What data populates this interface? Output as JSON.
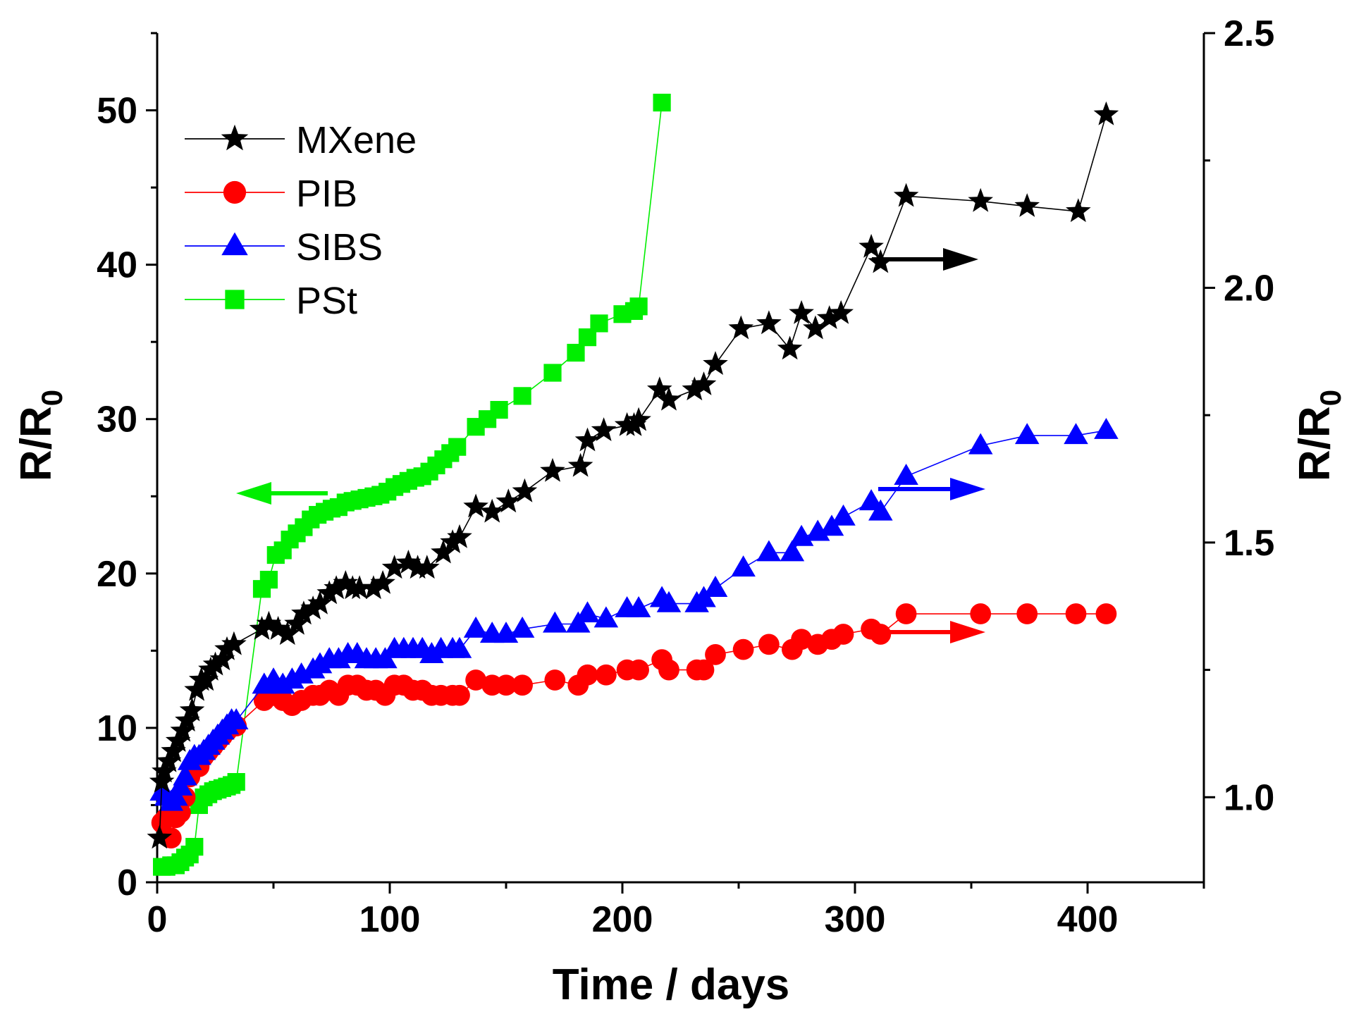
{
  "chart_data": {
    "type": "line",
    "title": "",
    "xlabel": "Time / days",
    "ylabel_left": {
      "main": "R/R",
      "sub": "0"
    },
    "ylabel_right": {
      "main": "R/R",
      "sub": "0"
    },
    "xlim": [
      0,
      450
    ],
    "ylim_left": [
      0,
      55
    ],
    "ylim_right": [
      0.833,
      2.5
    ],
    "x_ticks": [
      0,
      100,
      200,
      300,
      400
    ],
    "y_left_ticks": [
      0,
      10,
      20,
      30,
      40,
      50
    ],
    "y_right_ticks": [
      "1.0",
      "1.5",
      "2.0",
      "2.5"
    ],
    "grid": false,
    "legend_position": "top-left",
    "series": [
      {
        "name": "MXene",
        "color": "#000000",
        "marker": "star",
        "axis": "right",
        "x": [
          1,
          2,
          3,
          5,
          7,
          9,
          11,
          13,
          15,
          17,
          19,
          21,
          23,
          25,
          28,
          30,
          33,
          45,
          48,
          52,
          56,
          60,
          63,
          67,
          70,
          74,
          77,
          81,
          84,
          87,
          93,
          97,
          102,
          108,
          112,
          116,
          123,
          127,
          130,
          137,
          144,
          151,
          158,
          170,
          182,
          185,
          192,
          202,
          205,
          207,
          216,
          220,
          231,
          235,
          240,
          251,
          263,
          272,
          277,
          283,
          289,
          294,
          307,
          311,
          322,
          354,
          374,
          396,
          408
        ],
        "y": [
          0.92,
          1.03,
          1.05,
          1.07,
          1.09,
          1.11,
          1.13,
          1.15,
          1.17,
          1.21,
          1.23,
          1.23,
          1.25,
          1.26,
          1.27,
          1.29,
          1.3,
          1.33,
          1.34,
          1.33,
          1.32,
          1.34,
          1.36,
          1.37,
          1.38,
          1.4,
          1.41,
          1.42,
          1.41,
          1.41,
          1.41,
          1.42,
          1.45,
          1.46,
          1.45,
          1.45,
          1.48,
          1.5,
          1.51,
          1.57,
          1.56,
          1.58,
          1.6,
          1.64,
          1.65,
          1.7,
          1.72,
          1.73,
          1.73,
          1.74,
          1.8,
          1.78,
          1.8,
          1.81,
          1.85,
          1.92,
          1.93,
          1.88,
          1.95,
          1.92,
          1.94,
          1.95,
          2.08,
          2.05,
          2.18,
          2.17,
          2.16,
          2.15,
          2.34
        ]
      },
      {
        "name": "PIB",
        "color": "#ff0000",
        "marker": "circle",
        "axis": "right",
        "x": [
          2,
          4,
          6,
          8,
          10,
          12,
          14,
          16,
          18,
          20,
          22,
          24,
          26,
          28,
          30,
          32,
          34,
          46,
          50,
          54,
          58,
          62,
          67,
          70,
          74,
          78,
          82,
          86,
          90,
          94,
          98,
          102,
          106,
          110,
          114,
          118,
          122,
          127,
          130,
          137,
          144,
          150,
          157,
          171,
          181,
          185,
          193,
          202,
          207,
          217,
          220,
          232,
          235,
          240,
          252,
          263,
          273,
          277,
          284,
          290,
          295,
          307,
          311,
          322,
          354,
          374,
          395,
          408
        ],
        "y": [
          0.95,
          0.96,
          0.92,
          0.96,
          0.97,
          1.0,
          1.04,
          1.06,
          1.06,
          1.08,
          1.09,
          1.1,
          1.11,
          1.12,
          1.13,
          1.14,
          1.14,
          1.19,
          1.2,
          1.19,
          1.18,
          1.19,
          1.2,
          1.2,
          1.21,
          1.2,
          1.22,
          1.22,
          1.21,
          1.21,
          1.2,
          1.22,
          1.22,
          1.21,
          1.21,
          1.2,
          1.2,
          1.2,
          1.2,
          1.23,
          1.22,
          1.22,
          1.22,
          1.23,
          1.22,
          1.24,
          1.24,
          1.25,
          1.25,
          1.27,
          1.25,
          1.25,
          1.25,
          1.28,
          1.29,
          1.3,
          1.29,
          1.31,
          1.3,
          1.31,
          1.32,
          1.33,
          1.32,
          1.36,
          1.36,
          1.36,
          1.36,
          1.36
        ]
      },
      {
        "name": "SIBS",
        "color": "#0000ff",
        "marker": "triangle",
        "axis": "right",
        "x": [
          2,
          4,
          6,
          8,
          10,
          12,
          14,
          16,
          18,
          20,
          22,
          24,
          26,
          28,
          30,
          32,
          34,
          46,
          50,
          54,
          58,
          62,
          67,
          70,
          74,
          78,
          82,
          86,
          90,
          94,
          98,
          102,
          106,
          110,
          114,
          118,
          122,
          127,
          130,
          137,
          144,
          150,
          157,
          171,
          181,
          185,
          193,
          202,
          207,
          217,
          220,
          232,
          235,
          240,
          252,
          263,
          273,
          277,
          284,
          290,
          295,
          307,
          311,
          322,
          354,
          374,
          395,
          408
        ],
        "y": [
          1.01,
          1.0,
          0.99,
          1.0,
          1.02,
          1.04,
          1.07,
          1.08,
          1.08,
          1.09,
          1.1,
          1.11,
          1.12,
          1.13,
          1.14,
          1.15,
          1.15,
          1.22,
          1.23,
          1.22,
          1.23,
          1.24,
          1.25,
          1.26,
          1.27,
          1.27,
          1.28,
          1.28,
          1.27,
          1.27,
          1.27,
          1.29,
          1.29,
          1.29,
          1.29,
          1.28,
          1.29,
          1.29,
          1.29,
          1.33,
          1.32,
          1.32,
          1.33,
          1.34,
          1.34,
          1.36,
          1.35,
          1.37,
          1.37,
          1.39,
          1.38,
          1.38,
          1.39,
          1.41,
          1.45,
          1.48,
          1.48,
          1.51,
          1.52,
          1.53,
          1.55,
          1.58,
          1.56,
          1.63,
          1.69,
          1.71,
          1.71,
          1.72
        ]
      },
      {
        "name": "PSt",
        "color": "#00ee00",
        "marker": "square",
        "axis": "left",
        "x": [
          2,
          4,
          6,
          8,
          10,
          12,
          14,
          16,
          18,
          20,
          22,
          24,
          26,
          28,
          30,
          32,
          34,
          45,
          48,
          51,
          54,
          57,
          60,
          63,
          66,
          69,
          72,
          75,
          78,
          81,
          84,
          87,
          90,
          93,
          96,
          99,
          102,
          105,
          108,
          111,
          114,
          117,
          120,
          123,
          126,
          129,
          137,
          142,
          147,
          157,
          170,
          180,
          185,
          190,
          200,
          205,
          207,
          217
        ],
        "y": [
          1.0,
          1.0,
          1.1,
          1.1,
          1.3,
          1.6,
          1.8,
          2.3,
          5.0,
          5.5,
          5.7,
          5.9,
          6.0,
          6.1,
          6.2,
          6.3,
          6.5,
          19.0,
          19.6,
          21.2,
          21.5,
          22.2,
          22.6,
          23.0,
          23.5,
          23.8,
          24.0,
          24.2,
          24.3,
          24.6,
          24.7,
          24.8,
          24.9,
          25.0,
          25.1,
          25.3,
          25.6,
          25.8,
          26.0,
          26.2,
          26.3,
          26.6,
          27.0,
          27.4,
          27.8,
          28.2,
          29.5,
          30.0,
          30.6,
          31.5,
          33.0,
          34.3,
          35.3,
          36.2,
          36.8,
          37.0,
          37.3,
          50.5
        ]
      }
    ],
    "annotations": [
      {
        "kind": "arrow",
        "direction": "left",
        "color": "#00ee00",
        "meaning": "PSt uses left axis"
      },
      {
        "kind": "arrow",
        "direction": "right",
        "color": "#000000",
        "meaning": "MXene uses right axis"
      },
      {
        "kind": "arrow",
        "direction": "right",
        "color": "#0000ff",
        "meaning": "SIBS uses right axis"
      },
      {
        "kind": "arrow",
        "direction": "right",
        "color": "#ff0000",
        "meaning": "PIB uses right axis"
      }
    ]
  }
}
